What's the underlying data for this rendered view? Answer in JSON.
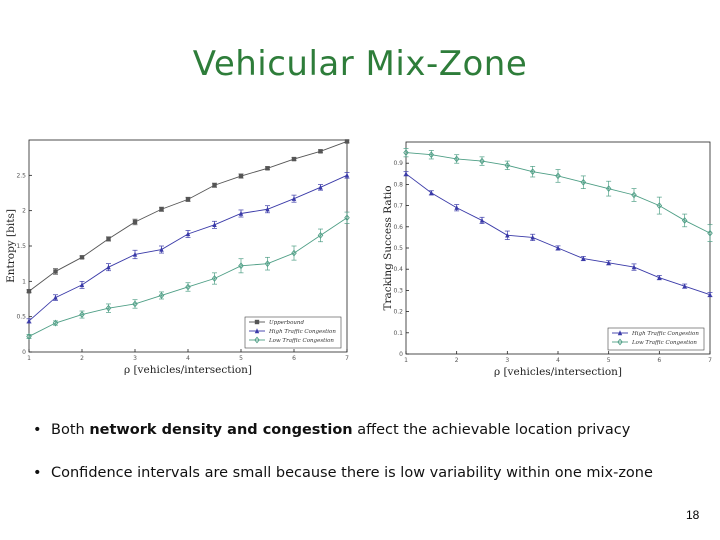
{
  "title": "Vehicular Mix-Zone",
  "bullets": [
    {
      "pre": "Both ",
      "bold": "network density and congestion",
      "post": " affect the achievable location privacy"
    },
    {
      "pre": "Confidence intervals are small because there is low variability within one mix-zone",
      "bold": "",
      "post": ""
    }
  ],
  "page_number": "18",
  "chart_data": [
    {
      "type": "line",
      "xlabel": "ρ [vehicles/intersection]",
      "ylabel": "Entropy [bits]",
      "xlim": [
        1,
        7
      ],
      "ylim": [
        0,
        3
      ],
      "xticks": [
        1,
        2,
        3,
        4,
        5,
        6,
        7
      ],
      "yticks": [
        0,
        0.5,
        1,
        1.5,
        2,
        2.5
      ],
      "legend_position": "bottom-right",
      "grid": false,
      "x": [
        1,
        1.5,
        2,
        2.5,
        3,
        3.5,
        4,
        4.5,
        5,
        5.5,
        6,
        6.5,
        7
      ],
      "series": [
        {
          "name": "Upperbound",
          "marker": "square",
          "color": "#555555",
          "values": [
            0.86,
            1.14,
            1.34,
            1.6,
            1.84,
            2.02,
            2.16,
            2.36,
            2.49,
            2.6,
            2.73,
            2.84,
            2.98
          ],
          "err": [
            0.02,
            0.04,
            0.02,
            0.03,
            0.04,
            0.03,
            0.03,
            0.03,
            0.03,
            0.02,
            0.02,
            0.02,
            0.02
          ]
        },
        {
          "name": "High Traffic Congestion",
          "marker": "triangle",
          "color": "#3a3aa8",
          "values": [
            0.44,
            0.77,
            0.95,
            1.2,
            1.38,
            1.45,
            1.67,
            1.8,
            1.96,
            2.02,
            2.17,
            2.33,
            2.5
          ],
          "err": [
            0.03,
            0.04,
            0.05,
            0.05,
            0.06,
            0.05,
            0.05,
            0.05,
            0.05,
            0.05,
            0.05,
            0.04,
            0.04
          ]
        },
        {
          "name": "Low Traffic Congestion",
          "marker": "diamond",
          "color": "#4f9f86",
          "values": [
            0.22,
            0.41,
            0.53,
            0.62,
            0.68,
            0.8,
            0.92,
            1.04,
            1.22,
            1.25,
            1.4,
            1.65,
            1.9
          ],
          "err": [
            0.03,
            0.03,
            0.05,
            0.06,
            0.06,
            0.05,
            0.06,
            0.08,
            0.1,
            0.09,
            0.1,
            0.09,
            0.08
          ]
        }
      ]
    },
    {
      "type": "line",
      "xlabel": "ρ [vehicles/intersection]",
      "ylabel": "Tracking Success Ratio",
      "xlim": [
        1,
        7
      ],
      "ylim": [
        0,
        1
      ],
      "xticks": [
        1,
        2,
        3,
        4,
        5,
        6,
        7
      ],
      "yticks": [
        0,
        0.1,
        0.2,
        0.3,
        0.4,
        0.5,
        0.6,
        0.7,
        0.8,
        0.9
      ],
      "legend_position": "bottom-right",
      "grid": false,
      "x": [
        1,
        1.5,
        2,
        2.5,
        3,
        3.5,
        4,
        4.5,
        5,
        5.5,
        6,
        6.5,
        7
      ],
      "series": [
        {
          "name": "High Traffic Congestion",
          "marker": "triangle",
          "color": "#3a3aa8",
          "values": [
            0.85,
            0.76,
            0.69,
            0.63,
            0.56,
            0.55,
            0.5,
            0.45,
            0.43,
            0.41,
            0.36,
            0.32,
            0.28
          ],
          "err": [
            0.01,
            0.01,
            0.015,
            0.015,
            0.02,
            0.015,
            0.01,
            0.01,
            0.01,
            0.015,
            0.01,
            0.01,
            0.01
          ]
        },
        {
          "name": "Low Traffic Congestion",
          "marker": "diamond",
          "color": "#4f9f86",
          "values": [
            0.95,
            0.94,
            0.92,
            0.91,
            0.89,
            0.86,
            0.84,
            0.81,
            0.78,
            0.75,
            0.7,
            0.63,
            0.57
          ],
          "err": [
            0.02,
            0.02,
            0.02,
            0.02,
            0.02,
            0.025,
            0.03,
            0.03,
            0.035,
            0.03,
            0.04,
            0.03,
            0.04
          ]
        }
      ]
    }
  ]
}
